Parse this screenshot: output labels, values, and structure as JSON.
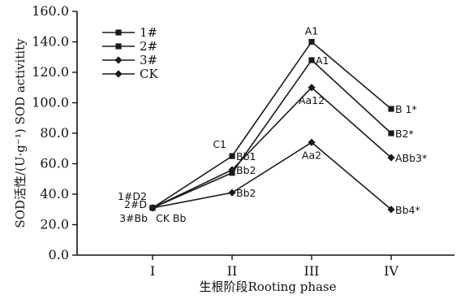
{
  "chart_data": {
    "type": "line",
    "title": "",
    "xlabel": "生根阶段Rooting phase",
    "ylabel": "SOD活性/(U·g⁻¹) SOD activitity",
    "categories": [
      "I",
      "II",
      "III",
      "IV"
    ],
    "ylim": [
      0,
      160
    ],
    "yticks": [
      "0.0",
      "20.0",
      "40.0",
      "60.0",
      "80.0",
      "100.0",
      "120.0",
      "140.0",
      "160.0"
    ],
    "grid": false,
    "legend_position": "top-left",
    "series": [
      {
        "name": "1#",
        "marker": "square",
        "values": [
          31,
          65,
          140,
          96
        ]
      },
      {
        "name": "2#",
        "marker": "square",
        "values": [
          31,
          54,
          128,
          80
        ]
      },
      {
        "name": "3#",
        "marker": "diamond",
        "values": [
          31,
          56,
          110,
          64
        ]
      },
      {
        "name": "CK",
        "marker": "diamond",
        "values": [
          31,
          41,
          74,
          30
        ]
      }
    ],
    "annotations": [
      {
        "text": "1#D2",
        "x": "I",
        "y": 31,
        "pos": "upper-left"
      },
      {
        "text": "2#D",
        "x": "I",
        "y": 31,
        "pos": "left"
      },
      {
        "text": "3#Bb",
        "x": "I",
        "y": 31,
        "pos": "lower-left"
      },
      {
        "text": "CK Bb",
        "x": "I",
        "y": 31,
        "pos": "lower-right"
      },
      {
        "text": "C1",
        "x": "II",
        "y": 65,
        "pos": "upper-left"
      },
      {
        "text": "Bb1",
        "x": "II",
        "y": 65,
        "pos": "right"
      },
      {
        "text": "Bb2",
        "x": "II",
        "y": 56,
        "pos": "right"
      },
      {
        "text": "Bb2",
        "x": "II",
        "y": 41,
        "pos": "right"
      },
      {
        "text": "A1",
        "x": "III",
        "y": 140,
        "pos": "above"
      },
      {
        "text": "A1",
        "x": "III",
        "y": 128,
        "pos": "right"
      },
      {
        "text": "Aa12",
        "x": "III",
        "y": 110,
        "pos": "below"
      },
      {
        "text": "Aa2",
        "x": "III",
        "y": 74,
        "pos": "below"
      },
      {
        "text": "B 1*",
        "x": "IV",
        "y": 96,
        "pos": "right"
      },
      {
        "text": "B2*",
        "x": "IV",
        "y": 80,
        "pos": "right"
      },
      {
        "text": "ABb3*",
        "x": "IV",
        "y": 64,
        "pos": "right"
      },
      {
        "text": "Bb4*",
        "x": "IV",
        "y": 30,
        "pos": "right"
      }
    ]
  },
  "colors": {
    "line": "#1a1a1a",
    "axis": "#111111",
    "text": "#111111"
  }
}
